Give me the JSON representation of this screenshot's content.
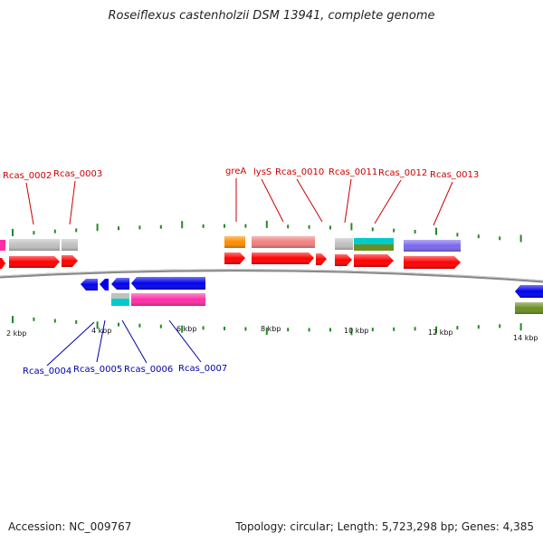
{
  "title": "Roseiflexus castenholzii DSM 13941, complete genome",
  "footer": {
    "accession": "Accession: NC_009767",
    "summary": "Topology: circular; Length: 5,723,298 bp; Genes: 4,385"
  },
  "scale_labels": [
    "2 kbp",
    "4 kbp",
    "6 kbp",
    "8 kbp",
    "10 kbp",
    "12 kbp",
    "14 kbp"
  ],
  "forward_labels": [
    "Rcas_0002",
    "Rcas_0003",
    "greA",
    "lysS",
    "Rcas_0010",
    "Rcas_0011",
    "Rcas_0012",
    "Rcas_0013"
  ],
  "reverse_labels": [
    "Rcas_0004",
    "Rcas_0005",
    "Rcas_0006",
    "Rcas_0007"
  ],
  "colors": {
    "cds": "#ff0000",
    "reverse_cds": "#0000ee",
    "grey": "#c0c0c0",
    "pink": "#ff2ea8",
    "salmon": "#f08080",
    "orange": "#ff8c00",
    "cyan": "#00cccc",
    "olive": "#6b8e23",
    "purple": "#7b68ee",
    "tick": "#228b22",
    "backbone": "#888888"
  }
}
